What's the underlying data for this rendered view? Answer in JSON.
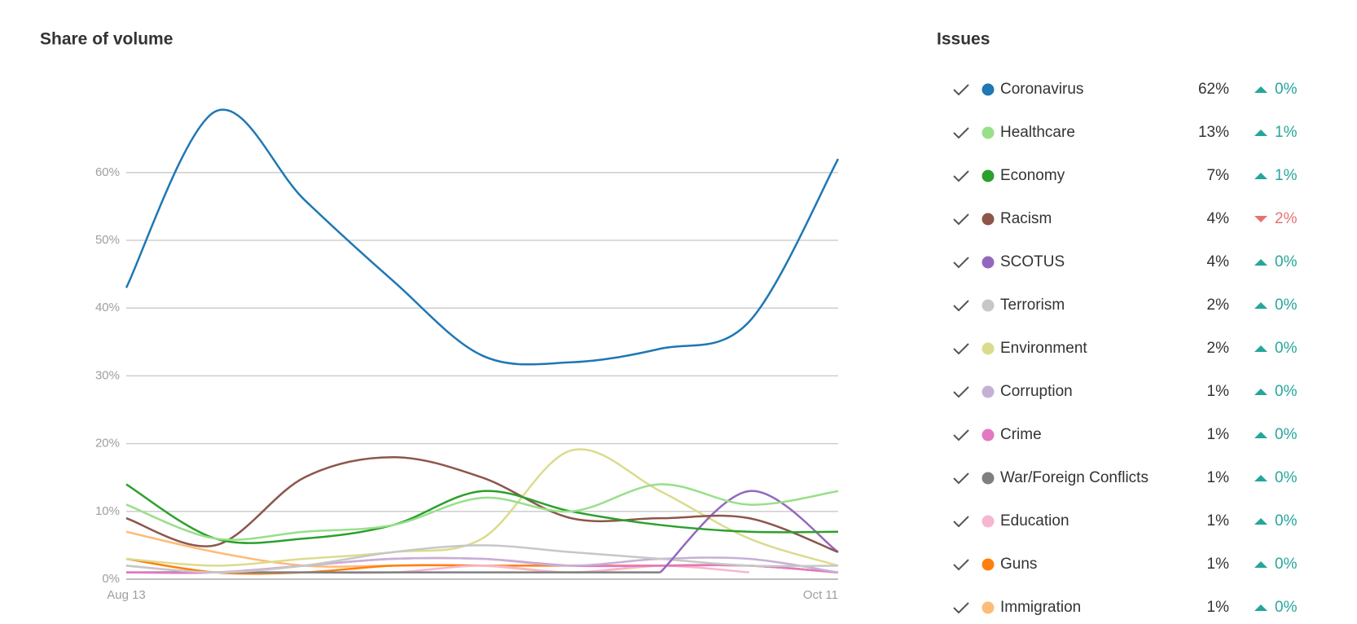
{
  "chart_data": {
    "type": "line",
    "title": "Share of volume",
    "legend_title": "Issues",
    "categories": [
      "Aug 13",
      null,
      null,
      null,
      null,
      null,
      null,
      null,
      "Oct 11"
    ],
    "ylim": [
      0,
      70
    ],
    "yticks": [
      {
        "value": 0,
        "label": "0%"
      },
      {
        "value": 10,
        "label": "10%"
      },
      {
        "value": 20,
        "label": "20%"
      },
      {
        "value": 30,
        "label": "30%"
      },
      {
        "value": 40,
        "label": "40%"
      },
      {
        "value": 50,
        "label": "50%"
      },
      {
        "value": 60,
        "label": "60%"
      }
    ],
    "grid": true,
    "series": [
      {
        "name": "Coronavirus",
        "color": "#1f77b4",
        "values": [
          43,
          69,
          56,
          44,
          33,
          32,
          34,
          38,
          62
        ],
        "share": "62%",
        "change": "0%",
        "trend": "up"
      },
      {
        "name": "Healthcare",
        "color": "#98df8a",
        "values": [
          11,
          6,
          7,
          8,
          12,
          10,
          14,
          11,
          13
        ],
        "share": "13%",
        "change": "1%",
        "trend": "up"
      },
      {
        "name": "Economy",
        "color": "#2ca02c",
        "values": [
          14,
          6,
          6,
          8,
          13,
          10,
          8,
          7,
          7
        ],
        "share": "7%",
        "change": "1%",
        "trend": "up"
      },
      {
        "name": "Racism",
        "color": "#8c564b",
        "values": [
          9,
          5,
          15,
          18,
          15,
          9,
          9,
          9,
          4
        ],
        "share": "4%",
        "change": "2%",
        "trend": "down"
      },
      {
        "name": "SCOTUS",
        "color": "#9467bd",
        "values": [
          null,
          null,
          null,
          null,
          null,
          null,
          1,
          13,
          4
        ],
        "share": "4%",
        "change": "0%",
        "trend": "up"
      },
      {
        "name": "Terrorism",
        "color": "#c7c7c7",
        "values": [
          2,
          1,
          2,
          4,
          5,
          4,
          3,
          2,
          2
        ],
        "share": "2%",
        "change": "0%",
        "trend": "up"
      },
      {
        "name": "Environment",
        "color": "#dbdb8d",
        "values": [
          3,
          2,
          3,
          4,
          6,
          19,
          13,
          6,
          2
        ],
        "share": "2%",
        "change": "0%",
        "trend": "up"
      },
      {
        "name": "Corruption",
        "color": "#c5b0d5",
        "values": [
          2,
          1,
          2,
          3,
          3,
          2,
          3,
          3,
          1
        ],
        "share": "1%",
        "change": "0%",
        "trend": "up"
      },
      {
        "name": "Crime",
        "color": "#e377c2",
        "values": [
          1,
          1,
          2,
          3,
          3,
          2,
          2,
          2,
          1
        ],
        "share": "1%",
        "change": "0%",
        "trend": "up"
      },
      {
        "name": "War/Foreign Conflicts",
        "color": "#7f7f7f",
        "values": [
          1,
          1,
          1,
          1,
          1,
          1,
          1,
          null,
          null
        ],
        "share": "1%",
        "change": "0%",
        "trend": "up"
      },
      {
        "name": "Education",
        "color": "#f7b6d2",
        "values": [
          1,
          1,
          1,
          1,
          2,
          1,
          2,
          1,
          null
        ],
        "share": "1%",
        "change": "0%",
        "trend": "up"
      },
      {
        "name": "Guns",
        "color": "#ff7f0e",
        "values": [
          3,
          1,
          1,
          2,
          2,
          2,
          2,
          2,
          1
        ],
        "share": "1%",
        "change": "0%",
        "trend": "up"
      },
      {
        "name": "Immigration",
        "color": "#ffbb78",
        "values": [
          7,
          4,
          2,
          2,
          2,
          1,
          2,
          2,
          1
        ],
        "share": "1%",
        "change": "0%",
        "trend": "up"
      }
    ]
  }
}
